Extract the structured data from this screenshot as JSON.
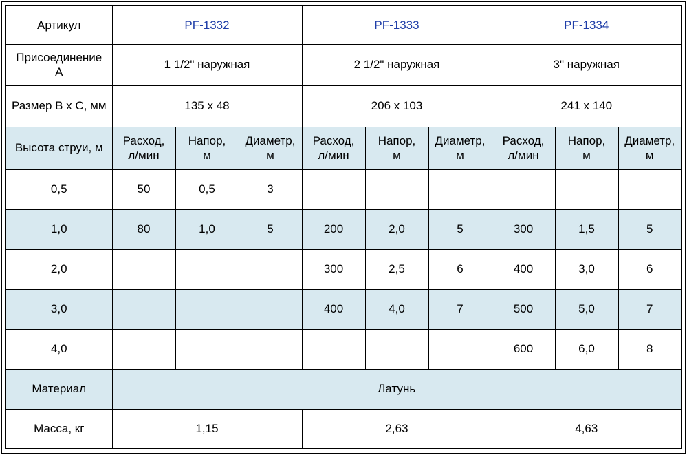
{
  "colors": {
    "accent_text_blue": "#1f3ea8",
    "stripe_background": "#d8e9f0",
    "border": "#000000",
    "text": "#000000",
    "background": "#ffffff"
  },
  "table": {
    "articul": {
      "label": "Артикул",
      "values": [
        "PF-1332",
        "PF-1333",
        "PF-1334"
      ]
    },
    "connection": {
      "label": "Присоединение\nА",
      "values": [
        "1 1/2\" наружная",
        "2 1/2\" наружная",
        "3\" наружная"
      ]
    },
    "size": {
      "label": "Размер B x C, мм",
      "values": [
        "135 x 48",
        "206 x 103",
        "241 x 140"
      ]
    },
    "jet_header": {
      "label": "Высота струи, м",
      "subcolumns": [
        "Расход,\nл/мин",
        "Напор,\nм",
        "Диаметр,\nм",
        "Расход,\nл/мин",
        "Напор,\nм",
        "Диаметр,\nм",
        "Расход,\nл/мин",
        "Напор,\nм",
        "Диаметр,\nм"
      ]
    },
    "rows": [
      {
        "label": "0,5",
        "cells": [
          "50",
          "0,5",
          "3",
          "",
          "",
          "",
          "",
          "",
          ""
        ]
      },
      {
        "label": "1,0",
        "cells": [
          "80",
          "1,0",
          "5",
          "200",
          "2,0",
          "5",
          "300",
          "1,5",
          "5"
        ]
      },
      {
        "label": "2,0",
        "cells": [
          "",
          "",
          "",
          "300",
          "2,5",
          "6",
          "400",
          "3,0",
          "6"
        ]
      },
      {
        "label": "3,0",
        "cells": [
          "",
          "",
          "",
          "400",
          "4,0",
          "7",
          "500",
          "5,0",
          "7"
        ]
      },
      {
        "label": "4,0",
        "cells": [
          "",
          "",
          "",
          "",
          "",
          "",
          "600",
          "6,0",
          "8"
        ]
      }
    ],
    "material": {
      "label": "Материал",
      "value": "Латунь"
    },
    "mass": {
      "label": "Масса, кг",
      "values": [
        "1,15",
        "2,63",
        "4,63"
      ]
    }
  }
}
